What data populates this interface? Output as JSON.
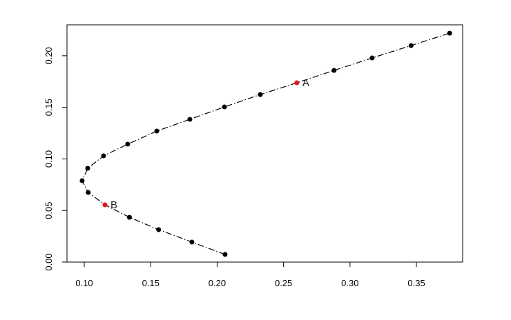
{
  "chart_data": {
    "type": "line",
    "x": [
      0.206,
      0.181,
      0.156,
      0.134,
      0.1156,
      0.103,
      0.0984,
      0.1026,
      0.1146,
      0.1327,
      0.1546,
      0.1795,
      0.2055,
      0.2325,
      0.26,
      0.288,
      0.3167,
      0.346,
      0.375
    ],
    "y": [
      0.0074,
      0.0194,
      0.0314,
      0.0434,
      0.0555,
      0.0675,
      0.0789,
      0.0909,
      0.103,
      0.1143,
      0.127,
      0.1384,
      0.1504,
      0.1624,
      0.1738,
      0.1858,
      0.1979,
      0.2099,
      0.2219
    ],
    "point_colors": [
      "#000000",
      "#000000",
      "#000000",
      "#000000",
      "#e8141b",
      "#000000",
      "#000000",
      "#000000",
      "#000000",
      "#000000",
      "#000000",
      "#000000",
      "#000000",
      "#000000",
      "#e8141b",
      "#000000",
      "#000000",
      "#000000",
      "#000000"
    ],
    "point_labels": [
      null,
      null,
      null,
      null,
      "B",
      null,
      null,
      null,
      null,
      null,
      null,
      null,
      null,
      null,
      "A",
      null,
      null,
      null,
      null
    ],
    "line_color": "#000000",
    "line_style": "dashdot",
    "xlim": [
      0.087,
      0.3848
    ],
    "ylim": [
      0.0,
      0.23
    ],
    "xticks": [
      {
        "value": 0.1,
        "label": "0.10"
      },
      {
        "value": 0.15,
        "label": "0.15"
      },
      {
        "value": 0.2,
        "label": "0.20"
      },
      {
        "value": 0.25,
        "label": "0.25"
      },
      {
        "value": 0.3,
        "label": "0.30"
      },
      {
        "value": 0.35,
        "label": "0.35"
      }
    ],
    "yticks": [
      {
        "value": 0,
        "label": "0.00"
      },
      {
        "value": 0.05,
        "label": "0.05"
      },
      {
        "value": 0.1,
        "label": "0.10"
      },
      {
        "value": 0.15,
        "label": "0.15"
      },
      {
        "value": 0.2,
        "label": "0.20"
      }
    ]
  }
}
